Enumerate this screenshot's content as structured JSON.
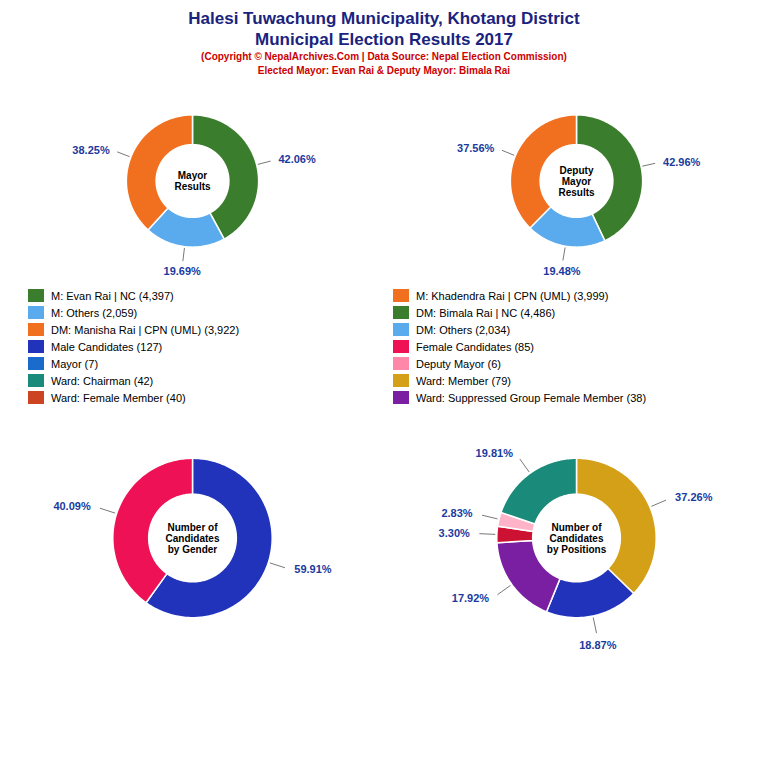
{
  "title": "Halesi Tuwachung Municipality, Khotang District\nMunicipal Election Results 2017",
  "subtitle": "(Copyright © NepalArchives.Com | Data Source: Nepal Election Commission)\nElected Mayor: Evan Rai & Deputy Mayor: Bimala Rai",
  "series": [
    {
      "name": "M: Evan Rai | NC (4,397)",
      "color": "#3a7d2c"
    },
    {
      "name": "M: Others (2,059)",
      "color": "#5aaaee"
    },
    {
      "name": "DM: Manisha Rai | CPN (UML) (3,922)",
      "color": "#f07020"
    },
    {
      "name": "Male Candidates (127)",
      "color": "#2233bb"
    },
    {
      "name": "Mayor (7)",
      "color": "#1a6bcc"
    },
    {
      "name": "Ward: Chairman (42)",
      "color": "#1a8a7a"
    },
    {
      "name": "Ward: Female Member (40)",
      "color": "#cc4422"
    },
    {
      "name": "M: Khadendra Rai | CPN (UML) (3,999)",
      "color": "#f07020"
    },
    {
      "name": "DM: Bimala Rai | NC (4,486)",
      "color": "#3a7d2c"
    },
    {
      "name": "DM: Others (2,034)",
      "color": "#5aaaee"
    },
    {
      "name": "Female Candidates (85)",
      "color": "#ee1155"
    },
    {
      "name": "Deputy Mayor (6)",
      "color": "#ff88aa"
    },
    {
      "name": "Ward: Member (79)",
      "color": "#d4a017"
    },
    {
      "name": "Ward: Suppressed Group Female Member (38)",
      "color": "#7b1fa2"
    }
  ],
  "chart_data": [
    {
      "type": "pie",
      "title": "Mayor\nResults",
      "values": [
        42.06,
        19.69,
        38.25
      ],
      "colors": [
        "#3a7d2c",
        "#5aaaee",
        "#f07020"
      ],
      "data_labels": true,
      "value_labels": [
        "42.06%",
        "19.69%",
        "38.25%"
      ]
    },
    {
      "type": "pie",
      "title": "Deputy\nMayor\nResults",
      "values": [
        42.96,
        19.48,
        37.56
      ],
      "colors": [
        "#3a7d2c",
        "#5aaaee",
        "#f07020"
      ],
      "data_labels": true,
      "value_labels": [
        "42.96%",
        "19.48%",
        "37.56%"
      ]
    },
    {
      "type": "pie",
      "title": "Number of\nCandidates\nby Gender",
      "values": [
        59.91,
        40.09
      ],
      "colors": [
        "#2233bb",
        "#ee1155"
      ],
      "data_labels": true,
      "value_labels": [
        "59.91%",
        "40.09%"
      ]
    },
    {
      "type": "pie",
      "title": "Number of\nCandidates\nby Positions",
      "values": [
        37.26,
        18.87,
        17.92,
        3.3,
        2.83,
        19.81
      ],
      "colors": [
        "#d4a017",
        "#2233bb",
        "#7b1fa2",
        "#cc1133",
        "#ffb3c8",
        "#1a8a7a"
      ],
      "data_labels": true,
      "value_labels": [
        "37.26%",
        "18.87%",
        "17.92%",
        "3.30%",
        "2.83%",
        "19.81%"
      ]
    }
  ]
}
